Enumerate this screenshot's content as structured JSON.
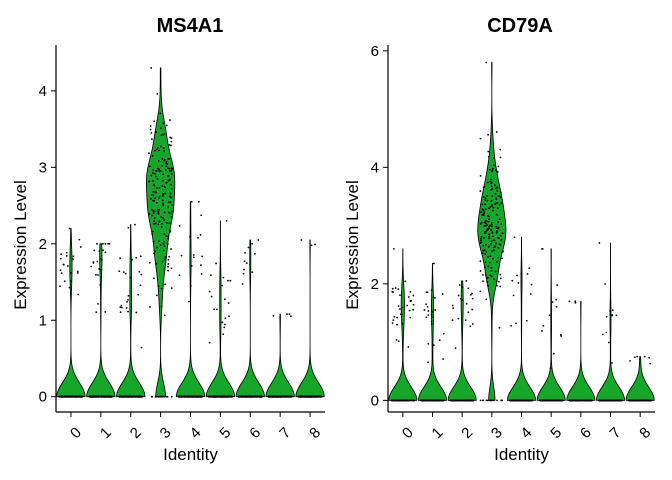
{
  "chart_data": [
    {
      "type": "violin",
      "title": "MS4A1",
      "xlabel": "Identity",
      "ylabel": "Expression Level",
      "categories": [
        "0",
        "1",
        "2",
        "3",
        "4",
        "5",
        "6",
        "7",
        "8"
      ],
      "ylim": [
        -0.2,
        4.6
      ],
      "yticks": [
        0,
        1,
        2,
        3,
        4
      ],
      "max_values": [
        2.2,
        2.0,
        2.25,
        4.3,
        2.55,
        2.3,
        2.05,
        1.08,
        2.05
      ],
      "expressed_fraction": [
        0.12,
        0.11,
        0.14,
        0.92,
        0.06,
        0.08,
        0.05,
        0.02,
        0.03
      ],
      "expressed_mean": [
        1.7,
        1.6,
        1.5,
        2.5,
        1.9,
        1.3,
        1.8,
        1.1,
        2.0
      ],
      "expressed_sd": [
        0.2,
        0.3,
        0.35,
        0.6,
        0.35,
        0.25,
        0.2,
        0.05,
        0.05
      ],
      "fill_color": "#15a62a",
      "point_color": "#000000"
    },
    {
      "type": "violin",
      "title": "CD79A",
      "xlabel": "Identity",
      "ylabel": "Expression Level",
      "categories": [
        "0",
        "1",
        "2",
        "3",
        "4",
        "5",
        "6",
        "7",
        "8"
      ],
      "ylim": [
        -0.2,
        6.1
      ],
      "yticks": [
        0,
        2,
        4,
        6
      ],
      "max_values": [
        2.6,
        2.35,
        2.05,
        5.8,
        2.8,
        2.6,
        1.7,
        2.7,
        0.75
      ],
      "expressed_fraction": [
        0.13,
        0.1,
        0.13,
        0.93,
        0.04,
        0.05,
        0.03,
        0.05,
        0.02
      ],
      "expressed_mean": [
        1.6,
        1.5,
        1.5,
        3.0,
        1.9,
        1.3,
        1.6,
        1.2,
        0.7
      ],
      "expressed_sd": [
        0.3,
        0.4,
        0.3,
        0.6,
        0.4,
        0.4,
        0.1,
        0.5,
        0.05
      ],
      "fill_color": "#15a62a",
      "point_color": "#000000"
    }
  ]
}
